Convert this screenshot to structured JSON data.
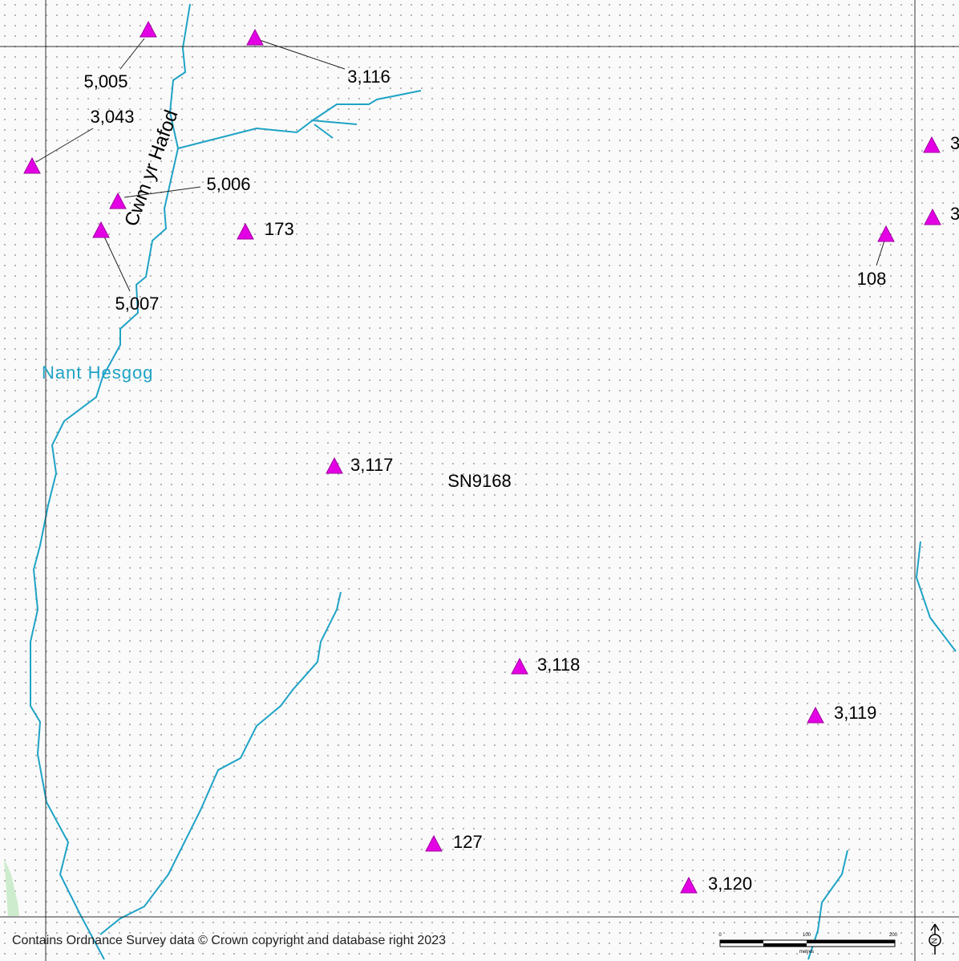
{
  "sites": [
    {
      "label": "5,005"
    },
    {
      "label": "3,116"
    },
    {
      "label": "3,043"
    },
    {
      "label": "5,006"
    },
    {
      "label": "5,007"
    },
    {
      "label": "173"
    },
    {
      "label": "108"
    },
    {
      "label": "3,117"
    },
    {
      "label": "3,118"
    },
    {
      "label": "3,119"
    },
    {
      "label": "127"
    },
    {
      "label": "3,120"
    },
    {
      "label": "3"
    },
    {
      "label": "3"
    }
  ],
  "places": {
    "valley": "Cwm yr Hafod",
    "stream": "Nant Hesgog",
    "grid_square": "SN9168"
  },
  "footer": {
    "copyright": "Contains Ordnance Survey data © Crown copyright and database right 2023",
    "scale": {
      "start": "0",
      "middle": "100",
      "end": "200",
      "unit": "metres"
    },
    "north": "N"
  }
}
